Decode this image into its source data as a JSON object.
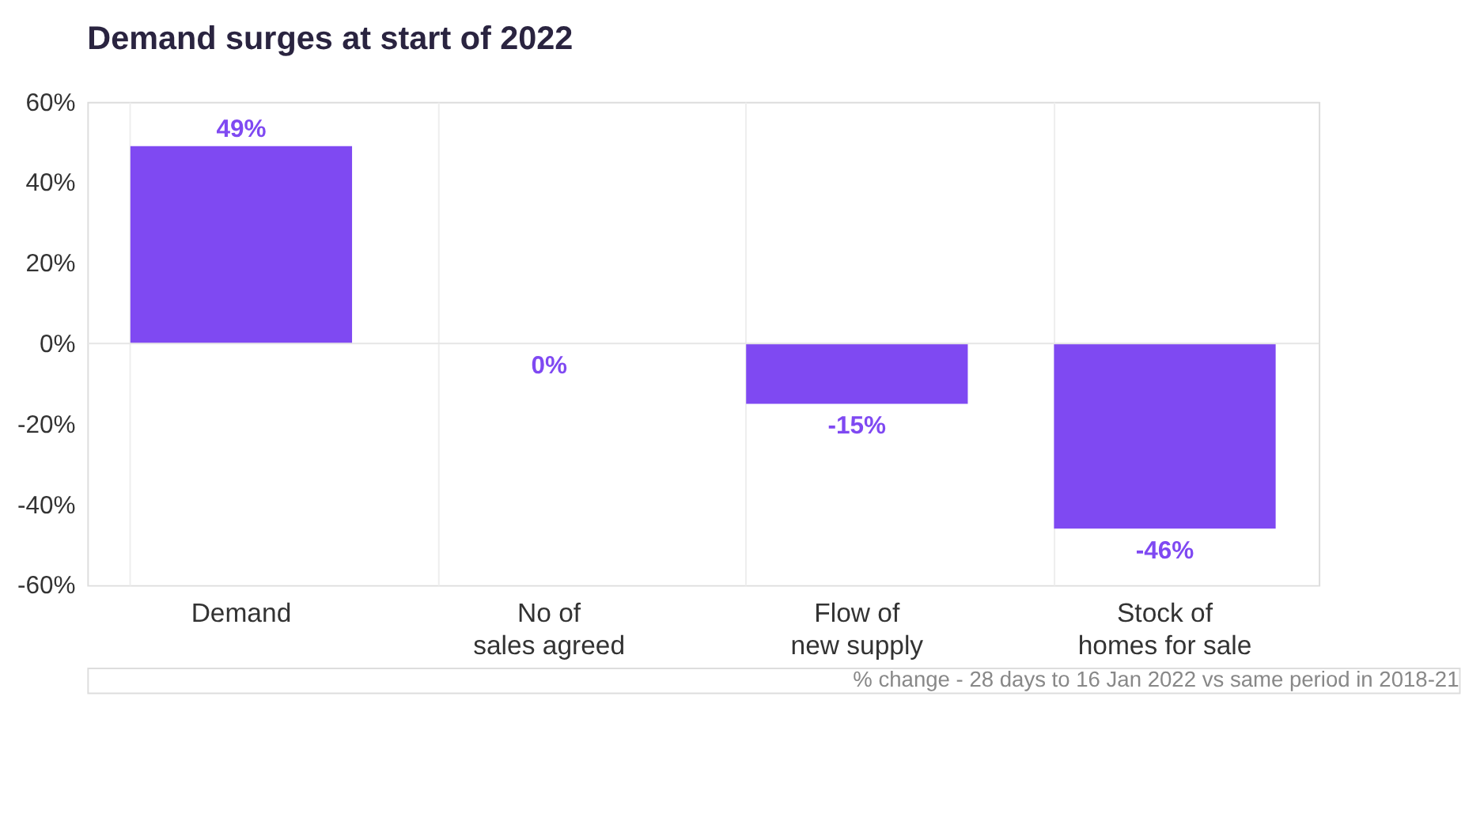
{
  "chart_data": {
    "type": "bar",
    "title": "Demand surges at start of 2022",
    "categories": [
      "Demand",
      "No of\nsales agreed",
      "Flow of\nnew supply",
      "Stock of\nhomes for sale"
    ],
    "values": [
      49,
      0,
      -15,
      -46
    ],
    "color": "#7f49f2",
    "value_labels": [
      "49%",
      "0%",
      "-15%",
      "-46%"
    ],
    "ylim": [
      -60,
      60
    ],
    "yticks": [
      {
        "value": -60,
        "label": "-60%"
      },
      {
        "value": -40,
        "label": "-40%"
      },
      {
        "value": -20,
        "label": "-20%"
      },
      {
        "value": 0,
        "label": "0%"
      },
      {
        "value": 20,
        "label": "20%"
      },
      {
        "value": 40,
        "label": "40%"
      },
      {
        "value": 60,
        "label": "60%"
      }
    ],
    "grid": "x",
    "ref_lines": [
      {
        "axis": "y",
        "value": 0,
        "color": "#e6e6e6"
      }
    ],
    "annotations": [
      "% change - 28 days to 16 Jan 2022 vs same period in 2018-21"
    ]
  }
}
